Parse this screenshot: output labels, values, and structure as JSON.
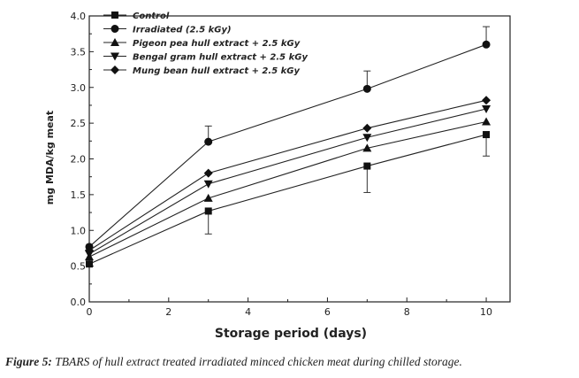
{
  "chart_data": {
    "type": "line",
    "title": "",
    "xlabel": "Storage period (days)",
    "ylabel": "mg MDA/kg meat",
    "xlim": [
      0,
      10.6
    ],
    "ylim": [
      0,
      4.0
    ],
    "xticks": [
      "0",
      "2",
      "4",
      "6",
      "8",
      "10"
    ],
    "yticks": [
      "0.0",
      "0.5",
      "1.0",
      "1.5",
      "2.0",
      "2.5",
      "3.0",
      "3.5",
      "4.0"
    ],
    "x": [
      0,
      3,
      7,
      10
    ],
    "legend_position": "top-left",
    "grid": false,
    "series": [
      {
        "name": "Control",
        "marker": "square",
        "values": [
          0.53,
          1.27,
          1.9,
          2.34
        ]
      },
      {
        "name": "Irradiated (2.5 kGy)",
        "marker": "circle",
        "values": [
          0.77,
          2.24,
          2.98,
          3.6
        ],
        "error": [
          0.0,
          0.22,
          0.25,
          0.25
        ]
      },
      {
        "name": "Pigeon pea hull extract + 2.5 kGy",
        "marker": "triangle-up",
        "values": [
          0.63,
          1.45,
          2.15,
          2.52
        ]
      },
      {
        "name": "Bengal gram hull extract + 2.5 kGy",
        "marker": "triangle-down",
        "values": [
          0.67,
          1.65,
          2.3,
          2.7
        ]
      },
      {
        "name": "Mung bean hull extract + 2.5 kGy",
        "marker": "diamond",
        "values": [
          0.72,
          1.8,
          2.43,
          2.82
        ]
      }
    ],
    "lower_error": {
      "series": "Control",
      "values": [
        0.0,
        0.32,
        0.37,
        0.3
      ]
    }
  },
  "caption": {
    "label": "Figure 5:",
    "text": " TBARS of hull extract treated irradiated minced chicken meat during chilled storage."
  }
}
